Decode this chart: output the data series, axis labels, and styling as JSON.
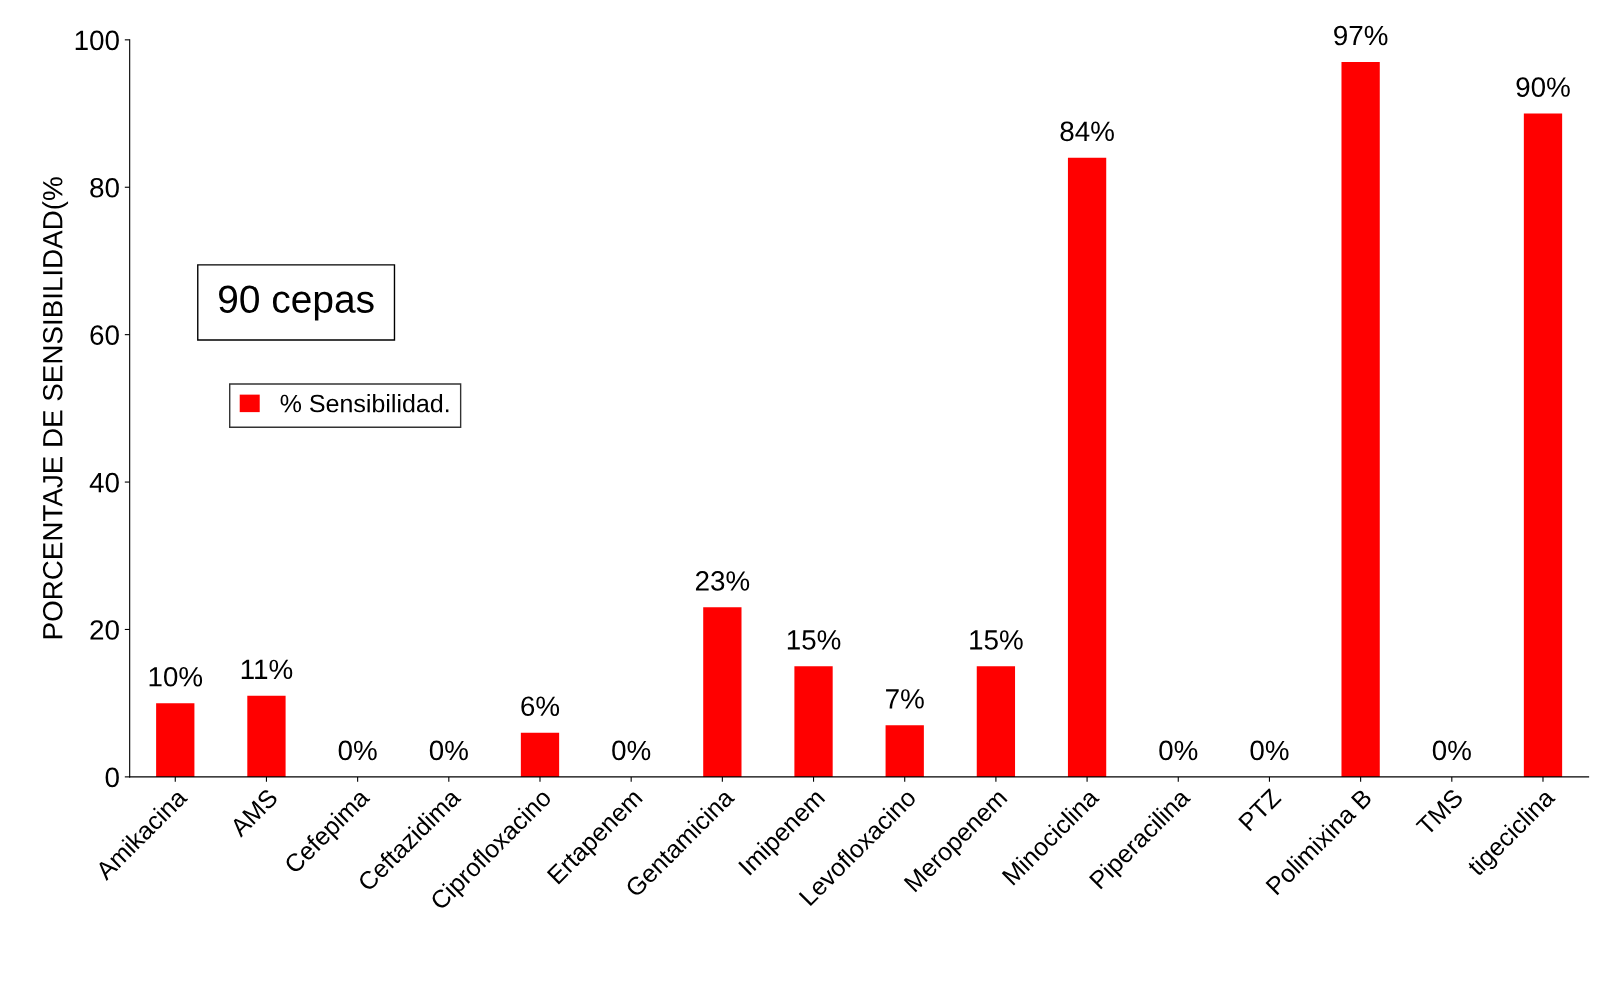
{
  "chart_data": {
    "type": "bar",
    "categories": [
      "Amikacina",
      "AMS",
      "Cefepima",
      "Ceftazidima",
      "Ciprofloxacino",
      "Ertapenem",
      "Gentamicina",
      "Imipenem",
      "Levofloxacino",
      "Meropenem",
      "Minociclina",
      "Piperacilina",
      "PTZ",
      "Polimixina B",
      "TMS",
      "tigeciclina"
    ],
    "series": [
      {
        "name": "% Sensibilidad.",
        "color": "#ff0000",
        "values": [
          10,
          11,
          0,
          0,
          6,
          0,
          23,
          15,
          7,
          15,
          84,
          0,
          0,
          97,
          0,
          90
        ],
        "value_labels": [
          "10%",
          "11%",
          "0%",
          "0%",
          "6%",
          "0%",
          "23%",
          "15%",
          "7%",
          "15%",
          "84%",
          "0%",
          "0%",
          "97%",
          "0%",
          "90%"
        ]
      }
    ],
    "ylabel": "PORCENTAJE DE SENSIBILIDAD(%",
    "ylim": [
      0,
      100
    ],
    "yticks": [
      0,
      20,
      40,
      60,
      80,
      100
    ],
    "annotations": [
      "90 cepas"
    ],
    "legend": "top left",
    "grid": false
  }
}
